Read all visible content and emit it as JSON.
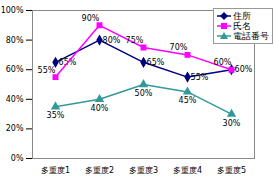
{
  "chart_data": {
    "type": "line",
    "categories": [
      "多重度1",
      "多重度2",
      "多重度3",
      "多重度4",
      "多重度5"
    ],
    "series": [
      {
        "name": "住所",
        "color": "#000080",
        "marker": "diamond",
        "values": [
          65,
          80,
          65,
          55,
          60
        ],
        "value_labels": [
          "65%",
          "80%",
          "65%",
          "55%",
          "60%"
        ]
      },
      {
        "name": "氏名",
        "color": "#ff00ff",
        "marker": "square",
        "values": [
          55,
          90,
          75,
          70,
          60
        ],
        "value_labels": [
          "55%",
          "90%",
          "75%",
          "70%",
          "60%"
        ]
      },
      {
        "name": "電話番号",
        "color": "#339999",
        "marker": "triangle",
        "values": [
          35,
          40,
          50,
          45,
          30
        ],
        "value_labels": [
          "35%",
          "40%",
          "50%",
          "45%",
          "30%"
        ]
      }
    ],
    "ylim": [
      0,
      100
    ],
    "yticks": [
      {
        "value": 0,
        "label": "0%"
      },
      {
        "value": 20,
        "label": "20%"
      },
      {
        "value": 40,
        "label": "40%"
      },
      {
        "value": 60,
        "label": "60%"
      },
      {
        "value": 80,
        "label": "80%"
      },
      {
        "value": 100,
        "label": "100%"
      }
    ],
    "grid": false,
    "data_labels": true,
    "legend": "top-right"
  }
}
